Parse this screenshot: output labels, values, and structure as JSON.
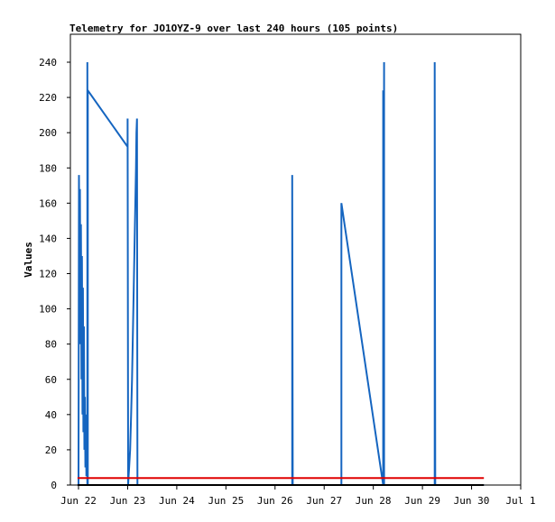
{
  "chart_data": {
    "type": "line",
    "title": "Telemetry for JO1OYZ-9 over last 240 hours (105 points)",
    "xlabel": "",
    "ylabel": "Values",
    "xlim": [
      "Jun 22",
      "Jul 1"
    ],
    "ylim": [
      0,
      255
    ],
    "x_unit": "days",
    "x_ticks": [
      {
        "label": "Jun 22",
        "day": 0
      },
      {
        "label": "Jun 23",
        "day": 1
      },
      {
        "label": "Jun 24",
        "day": 2
      },
      {
        "label": "Jun 25",
        "day": 3
      },
      {
        "label": "Jun 26",
        "day": 4
      },
      {
        "label": "Jun 27",
        "day": 5
      },
      {
        "label": "Jun 28",
        "day": 6
      },
      {
        "label": "Jun 29",
        "day": 7
      },
      {
        "label": "Jun 30",
        "day": 8
      },
      {
        "label": "Jul 1",
        "day": 9
      }
    ],
    "y_ticks": [
      0,
      20,
      40,
      60,
      80,
      100,
      120,
      140,
      160,
      180,
      200,
      220,
      240
    ],
    "grid": false,
    "series": [
      {
        "color": "#1565c0",
        "points": [
          [
            0.0,
            0
          ],
          [
            0.01,
            176
          ],
          [
            0.02,
            120
          ],
          [
            0.03,
            168
          ],
          [
            0.04,
            80
          ],
          [
            0.05,
            148
          ],
          [
            0.06,
            60
          ],
          [
            0.07,
            130
          ],
          [
            0.08,
            40
          ],
          [
            0.09,
            112
          ],
          [
            0.1,
            30
          ],
          [
            0.11,
            90
          ],
          [
            0.12,
            20
          ],
          [
            0.13,
            50
          ],
          [
            0.14,
            10
          ],
          [
            0.15,
            40
          ],
          [
            0.16,
            5
          ],
          [
            0.17,
            30
          ],
          [
            0.18,
            0
          ],
          [
            0.18,
            240
          ],
          [
            0.19,
            0
          ],
          [
            0.19,
            224
          ],
          [
            1.0,
            192
          ],
          [
            1.0,
            208
          ],
          [
            1.01,
            0
          ],
          [
            1.02,
            5
          ],
          [
            1.03,
            10
          ],
          [
            1.05,
            20
          ],
          [
            1.07,
            40
          ],
          [
            1.09,
            60
          ],
          [
            1.11,
            90
          ],
          [
            1.13,
            120
          ],
          [
            1.15,
            150
          ],
          [
            1.17,
            180
          ],
          [
            1.18,
            200
          ],
          [
            1.19,
            208
          ],
          [
            1.2,
            0
          ],
          [
            1.2,
            0
          ],
          [
            4.35,
            0
          ],
          [
            4.35,
            176
          ],
          [
            4.36,
            0
          ],
          [
            5.35,
            0
          ],
          [
            5.35,
            160
          ],
          [
            6.2,
            0
          ],
          [
            6.2,
            224
          ],
          [
            6.21,
            0
          ],
          [
            6.22,
            240
          ],
          [
            6.22,
            0
          ],
          [
            7.25,
            0
          ],
          [
            7.25,
            240
          ],
          [
            7.26,
            0
          ],
          [
            8.25,
            0
          ]
        ]
      },
      {
        "color": "#000000",
        "points": [
          [
            -0.02,
            0
          ],
          [
            8.25,
            0
          ]
        ]
      },
      {
        "color": "#e00000",
        "points": [
          [
            -0.02,
            4
          ],
          [
            8.25,
            4
          ]
        ]
      }
    ]
  }
}
